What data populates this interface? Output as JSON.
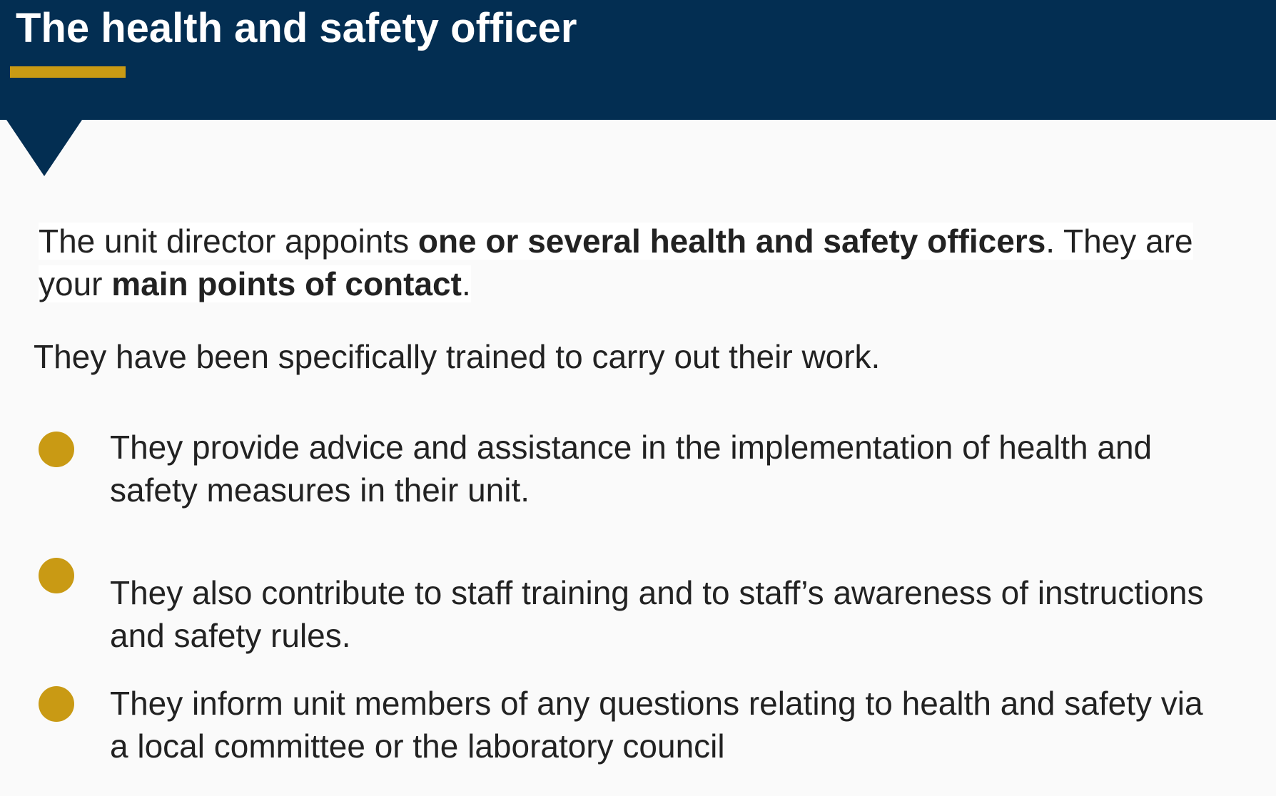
{
  "slide": {
    "title": "The health and safety officer",
    "intro": {
      "part1": "The unit director appoints ",
      "bold1": "one or several health and safety officers",
      "part2": ". They are your ",
      "bold2": "main points of contact",
      "part3": "."
    },
    "trained_text": "They have been specifically trained to carry out their work.",
    "bullets": [
      "They provide advice and assistance in the implementation of health and safety measures in their unit.",
      "They also contribute to staff training and to staff’s awareness of instructions and safety rules.",
      "They inform unit members of any questions relating to health and safety via a local committee or the laboratory council"
    ]
  },
  "colors": {
    "header_background": "#032e52",
    "accent": "#c99a14",
    "page_background": "#fafafa",
    "text": "#222222"
  }
}
